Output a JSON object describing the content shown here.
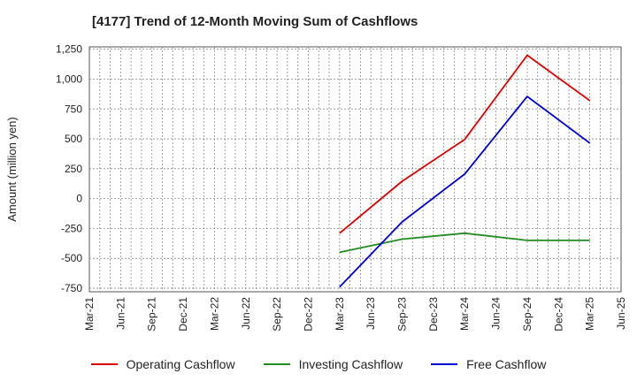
{
  "chart_data": {
    "type": "line",
    "title": "[4177]  Trend of 12-Month Moving Sum of Cashflows",
    "ylabel": "Amount (million yen)",
    "xlabel": "",
    "ylim": [
      -780,
      1270
    ],
    "y_ticks": [
      1250,
      1000,
      750,
      500,
      250,
      0,
      -250,
      -500,
      -750
    ],
    "y_tick_labels": [
      "1,250",
      "1,000",
      "750",
      "500",
      "250",
      "0",
      "-250",
      "-500",
      "-750"
    ],
    "categories": [
      "Mar-21",
      "Jun-21",
      "Sep-21",
      "Dec-21",
      "Mar-22",
      "Jun-22",
      "Sep-22",
      "Dec-22",
      "Mar-23",
      "Jun-23",
      "Sep-23",
      "Dec-23",
      "Mar-24",
      "Jun-24",
      "Sep-24",
      "Dec-24",
      "Mar-25",
      "Jun-25"
    ],
    "x": [
      "Mar-23",
      "Sep-23",
      "Mar-24",
      "Sep-24",
      "Mar-25"
    ],
    "grid": true,
    "legend_position": "bottom",
    "series": [
      {
        "name": "Operating Cashflow",
        "color": "#e00000",
        "values": [
          -290,
          145,
          495,
          1200,
          820
        ]
      },
      {
        "name": "Investing Cashflow",
        "color": "#228b22",
        "values": [
          -450,
          -340,
          -290,
          -350,
          -350
        ]
      },
      {
        "name": "Free Cashflow",
        "color": "#0000dd",
        "values": [
          -740,
          -195,
          205,
          855,
          465
        ]
      }
    ]
  }
}
